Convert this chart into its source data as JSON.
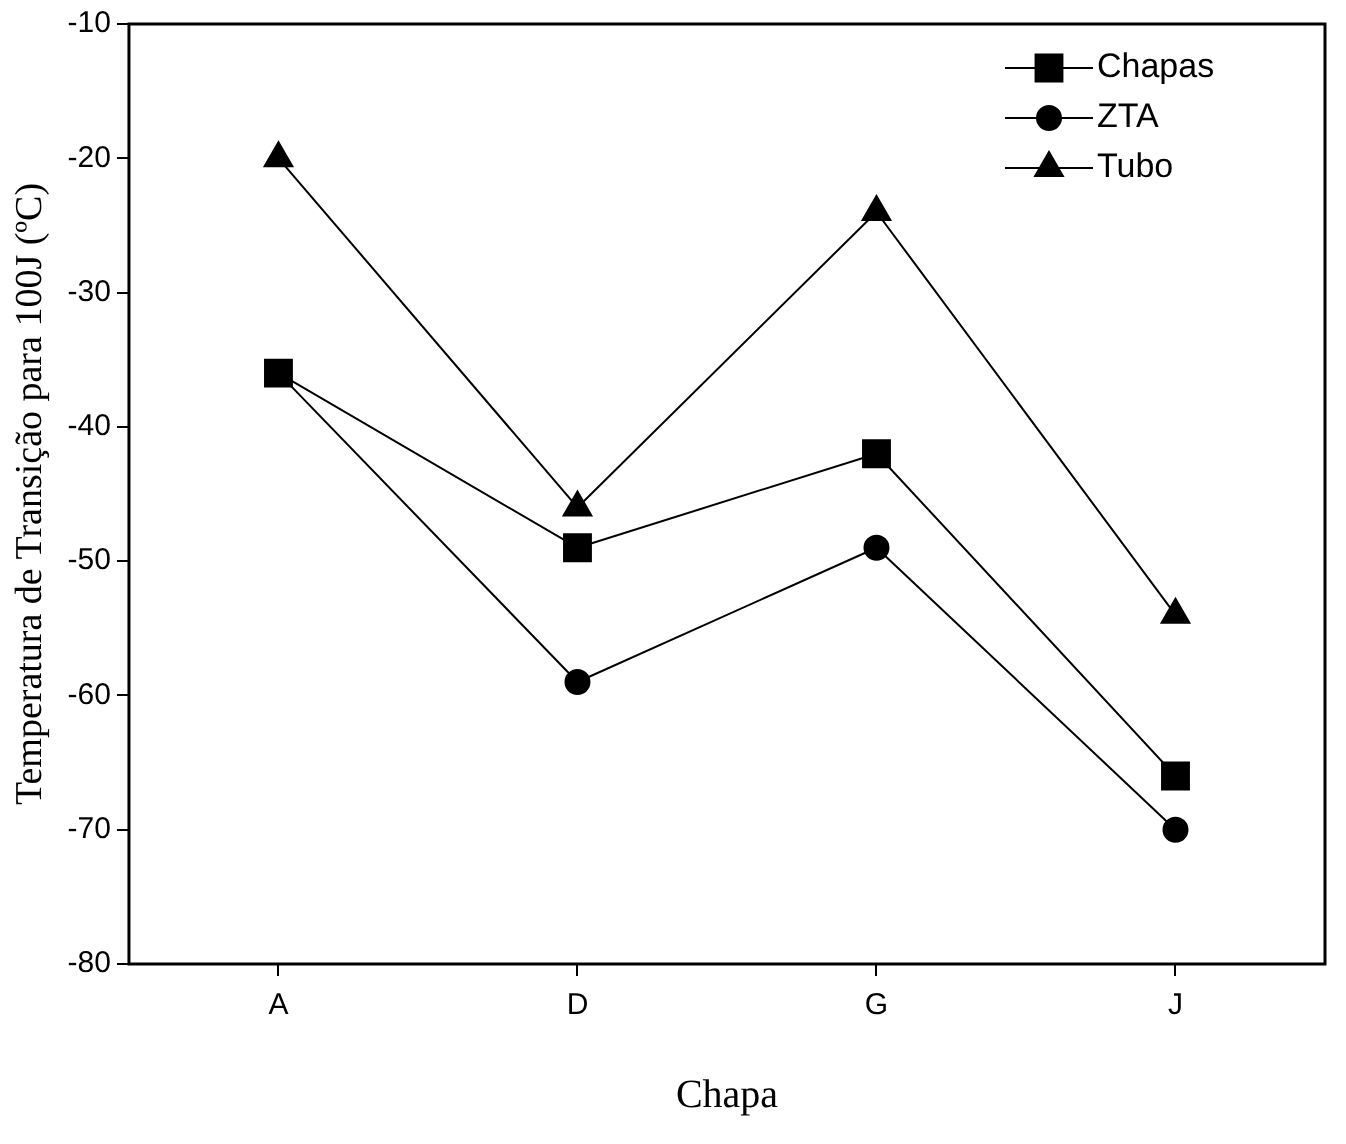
{
  "chart_data": {
    "type": "line",
    "xlabel": "Chapa",
    "ylabel": "Temperatura de Transição para 100J (ºC)",
    "categories": [
      "A",
      "D",
      "G",
      "J"
    ],
    "series": [
      {
        "name": "Chapas",
        "color": "#000000",
        "marker": "square",
        "values": [
          -36,
          -49,
          -42,
          -66
        ]
      },
      {
        "name": "ZTA",
        "color": "#000000",
        "marker": "circle",
        "values": [
          -36,
          -59,
          -49,
          -70
        ]
      },
      {
        "name": "Tubo",
        "color": "#000000",
        "marker": "triangle",
        "values": [
          -20,
          -46,
          -24,
          -54
        ]
      }
    ],
    "ylim": [
      -80,
      -10
    ],
    "yticks": [
      -80,
      -70,
      -60,
      -50,
      -40,
      -30,
      -20,
      -10
    ],
    "grid": false,
    "legend": "top right",
    "line_style": "solid"
  }
}
